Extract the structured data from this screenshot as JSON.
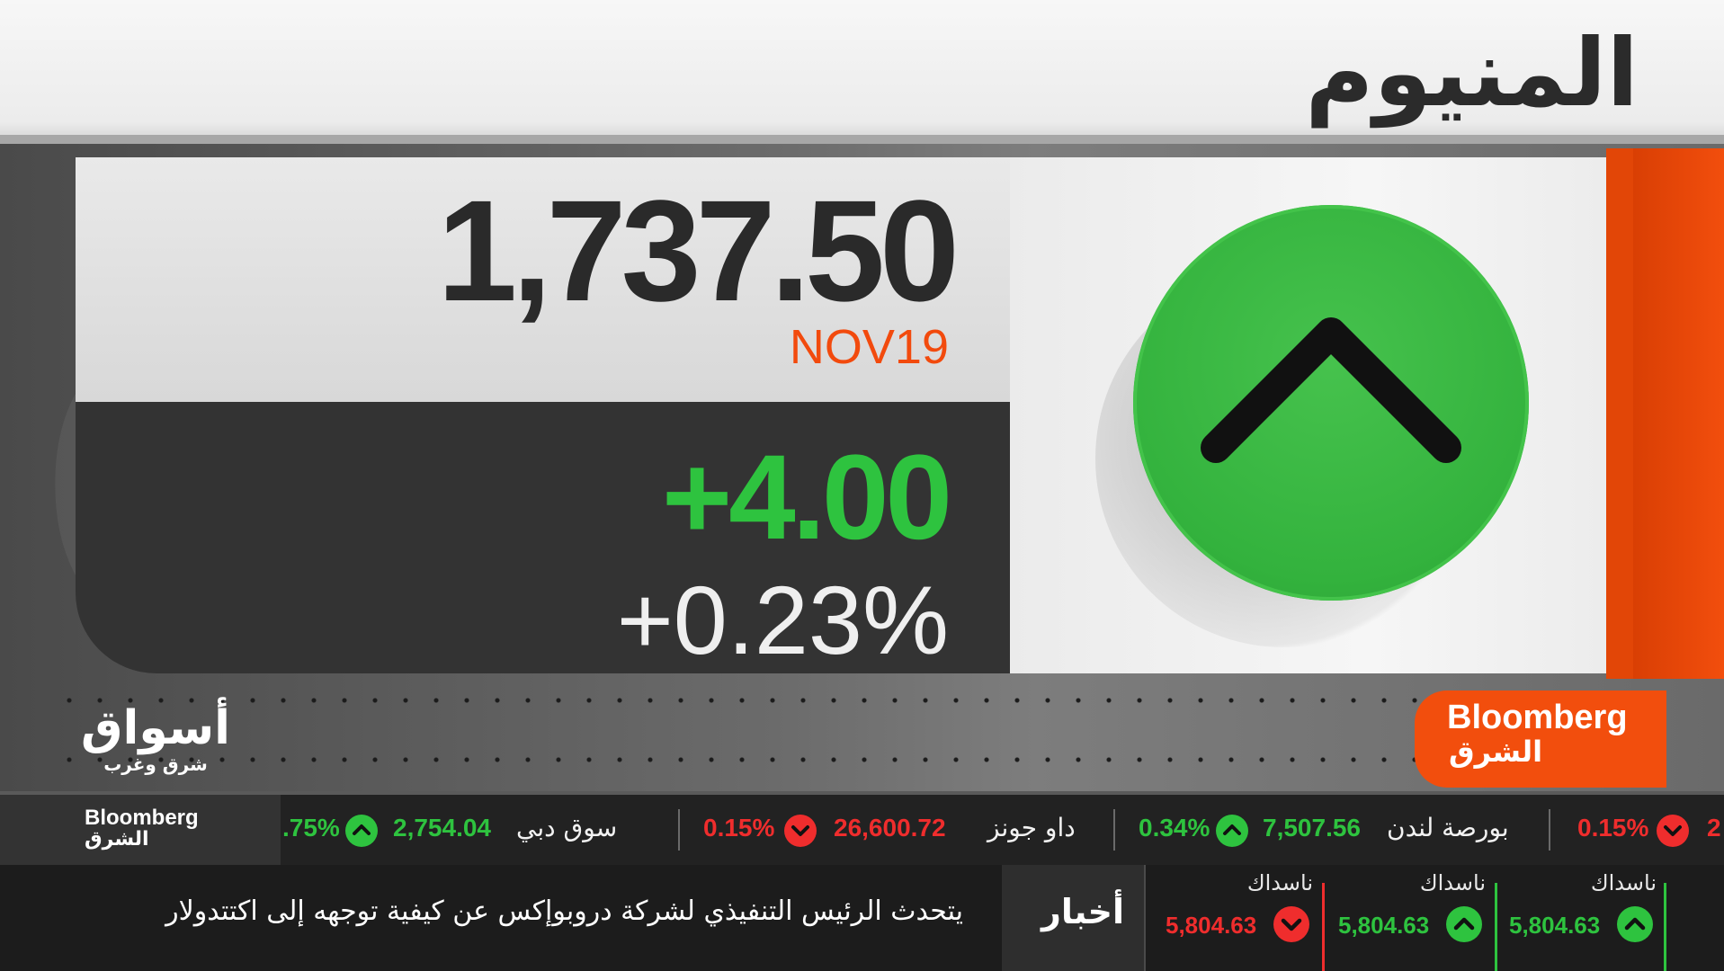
{
  "title": "المنيوم",
  "quote": {
    "price": "1,737.50",
    "contract": "NOV19",
    "change": "+4.00",
    "change_pct": "+0.23%",
    "direction_icon": "chevron-up-icon",
    "direction": "up"
  },
  "colors": {
    "accent": "#f24e0d",
    "up": "#2ec33f",
    "down": "#ef2d2d",
    "panel_dark": "#333333"
  },
  "branding": {
    "bloomberg_en": "Bloomberg",
    "bloomberg_ar": "الشرق",
    "aswaq_main": "أسواق",
    "aswaq_sub": "شرق وغرب"
  },
  "ticker": [
    {
      "name": "",
      "value": "",
      "pct": ".75%",
      "direction": "up"
    },
    {
      "name": "سوق دبي",
      "value": "2,754.04",
      "pct": "",
      "direction": "up"
    },
    {
      "name": "داو جونز",
      "value": "26,600.72",
      "pct": "0.15%",
      "direction": "down"
    },
    {
      "name": "بورصة لندن",
      "value": "7,507.56",
      "pct": "0.34%",
      "direction": "up"
    },
    {
      "name": "",
      "value": "2",
      "pct": "0.15%",
      "direction": "down"
    }
  ],
  "news": {
    "label": "أخبار",
    "headline": "يتحدث الرئيس التنفيذي لشركة دروبوإكس عن كيفية توجهه إلى اكتتدولار"
  },
  "mini_quotes": [
    {
      "name": "ناسداك",
      "value": "5,804.63",
      "direction": "down"
    },
    {
      "name": "ناسداك",
      "value": "5,804.63",
      "direction": "up"
    },
    {
      "name": "ناسداك",
      "value": "5,804.63",
      "direction": "up"
    }
  ]
}
